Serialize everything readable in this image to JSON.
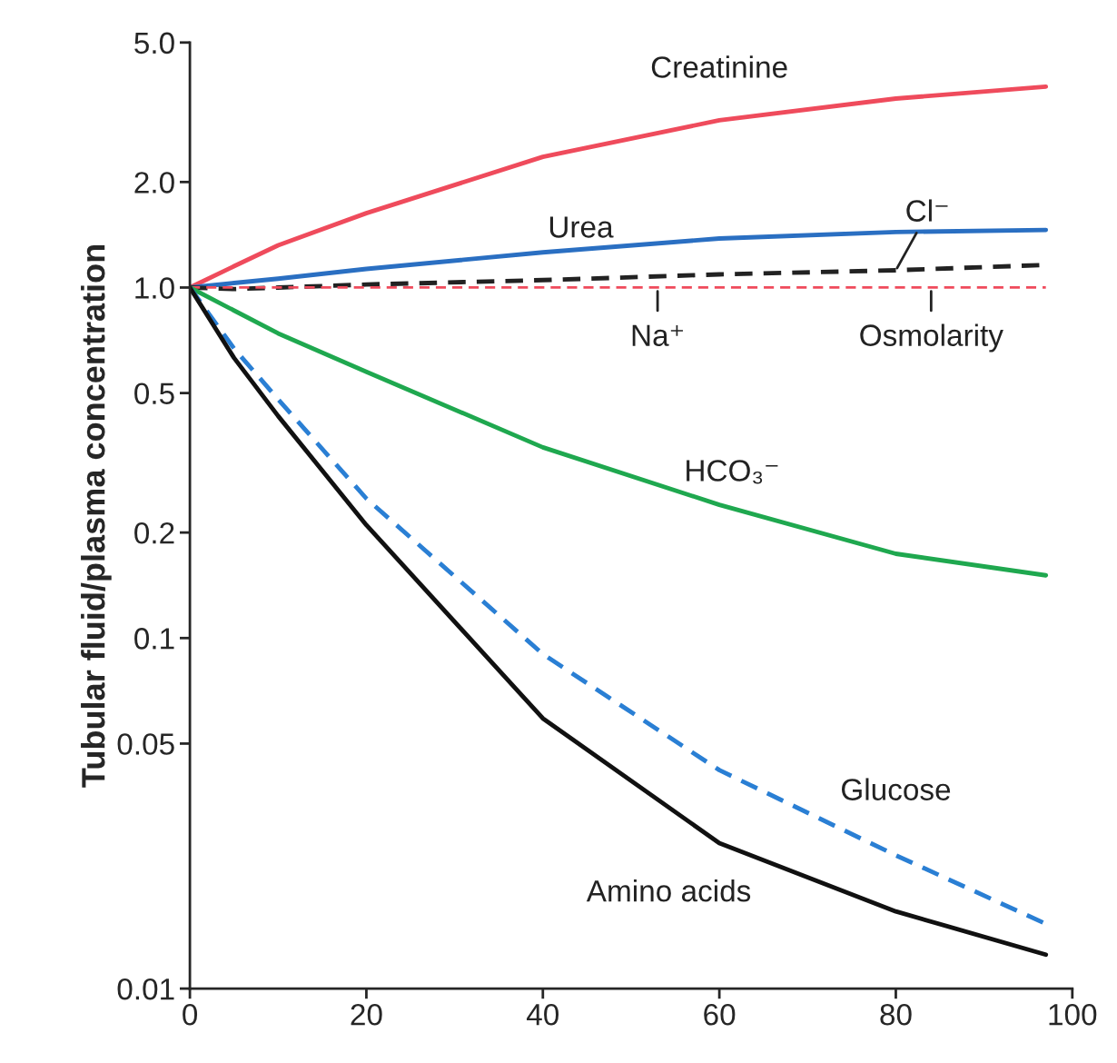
{
  "chart_data": {
    "type": "line",
    "ylabel": "Tubular fluid/plasma concentration",
    "log": "y",
    "grid": false,
    "legend": false,
    "x": [
      0,
      5,
      10,
      20,
      40,
      60,
      80,
      97
    ],
    "xlim": [
      0,
      100
    ],
    "xticks": [
      0,
      20,
      40,
      60,
      80,
      100
    ],
    "ylim": [
      0.01,
      5
    ],
    "yticks": [
      0.01,
      0.05,
      0.1,
      0.2,
      0.5,
      {
        "value": 1,
        "label": "1.0"
      },
      {
        "value": 2,
        "label": "2.0"
      },
      {
        "value": 5,
        "label": "5.0"
      }
    ],
    "series": [
      {
        "name": "Creatinine",
        "color": "#ef4b5c",
        "line_style": "solid",
        "values": [
          1.0,
          1.15,
          1.32,
          1.63,
          2.36,
          3.0,
          3.46,
          3.74
        ]
      },
      {
        "name": "Urea",
        "color": "#2a6fc2",
        "line_style": "solid",
        "values": [
          1.0,
          1.03,
          1.06,
          1.13,
          1.26,
          1.38,
          1.44,
          1.46
        ]
      },
      {
        "name": "Cl⁻",
        "color": "#222222",
        "line_style": "dashed",
        "values": [
          1.0,
          0.99,
          1.0,
          1.02,
          1.05,
          1.09,
          1.12,
          1.16
        ]
      },
      {
        "color": "#ef4b5c",
        "line_style": "dashed",
        "values": [
          1.0,
          1.0,
          1.0,
          1.0,
          1.0,
          1.0,
          1.0,
          1.0
        ]
      },
      {
        "name": "HCO₃⁻",
        "color": "#1fa84f",
        "line_style": "solid",
        "values": [
          1.0,
          0.86,
          0.74,
          0.575,
          0.35,
          0.24,
          0.174,
          0.151
        ]
      },
      {
        "name": "Glucose",
        "color": "#2a7fd4",
        "line_style": "dashed",
        "values": [
          1.0,
          0.67,
          0.48,
          0.25,
          0.09,
          0.042,
          0.024,
          0.0153
        ]
      },
      {
        "name": "Amino acids",
        "color": "#111111",
        "line_style": "solid",
        "values": [
          1.0,
          0.63,
          0.43,
          0.21,
          0.059,
          0.026,
          0.0166,
          0.0125
        ]
      }
    ],
    "annotations": [
      {
        "text": "Na⁺",
        "x": 53,
        "y": 1.0
      },
      {
        "text": "Osmolarity",
        "x": 84,
        "y": 1.0
      }
    ]
  }
}
